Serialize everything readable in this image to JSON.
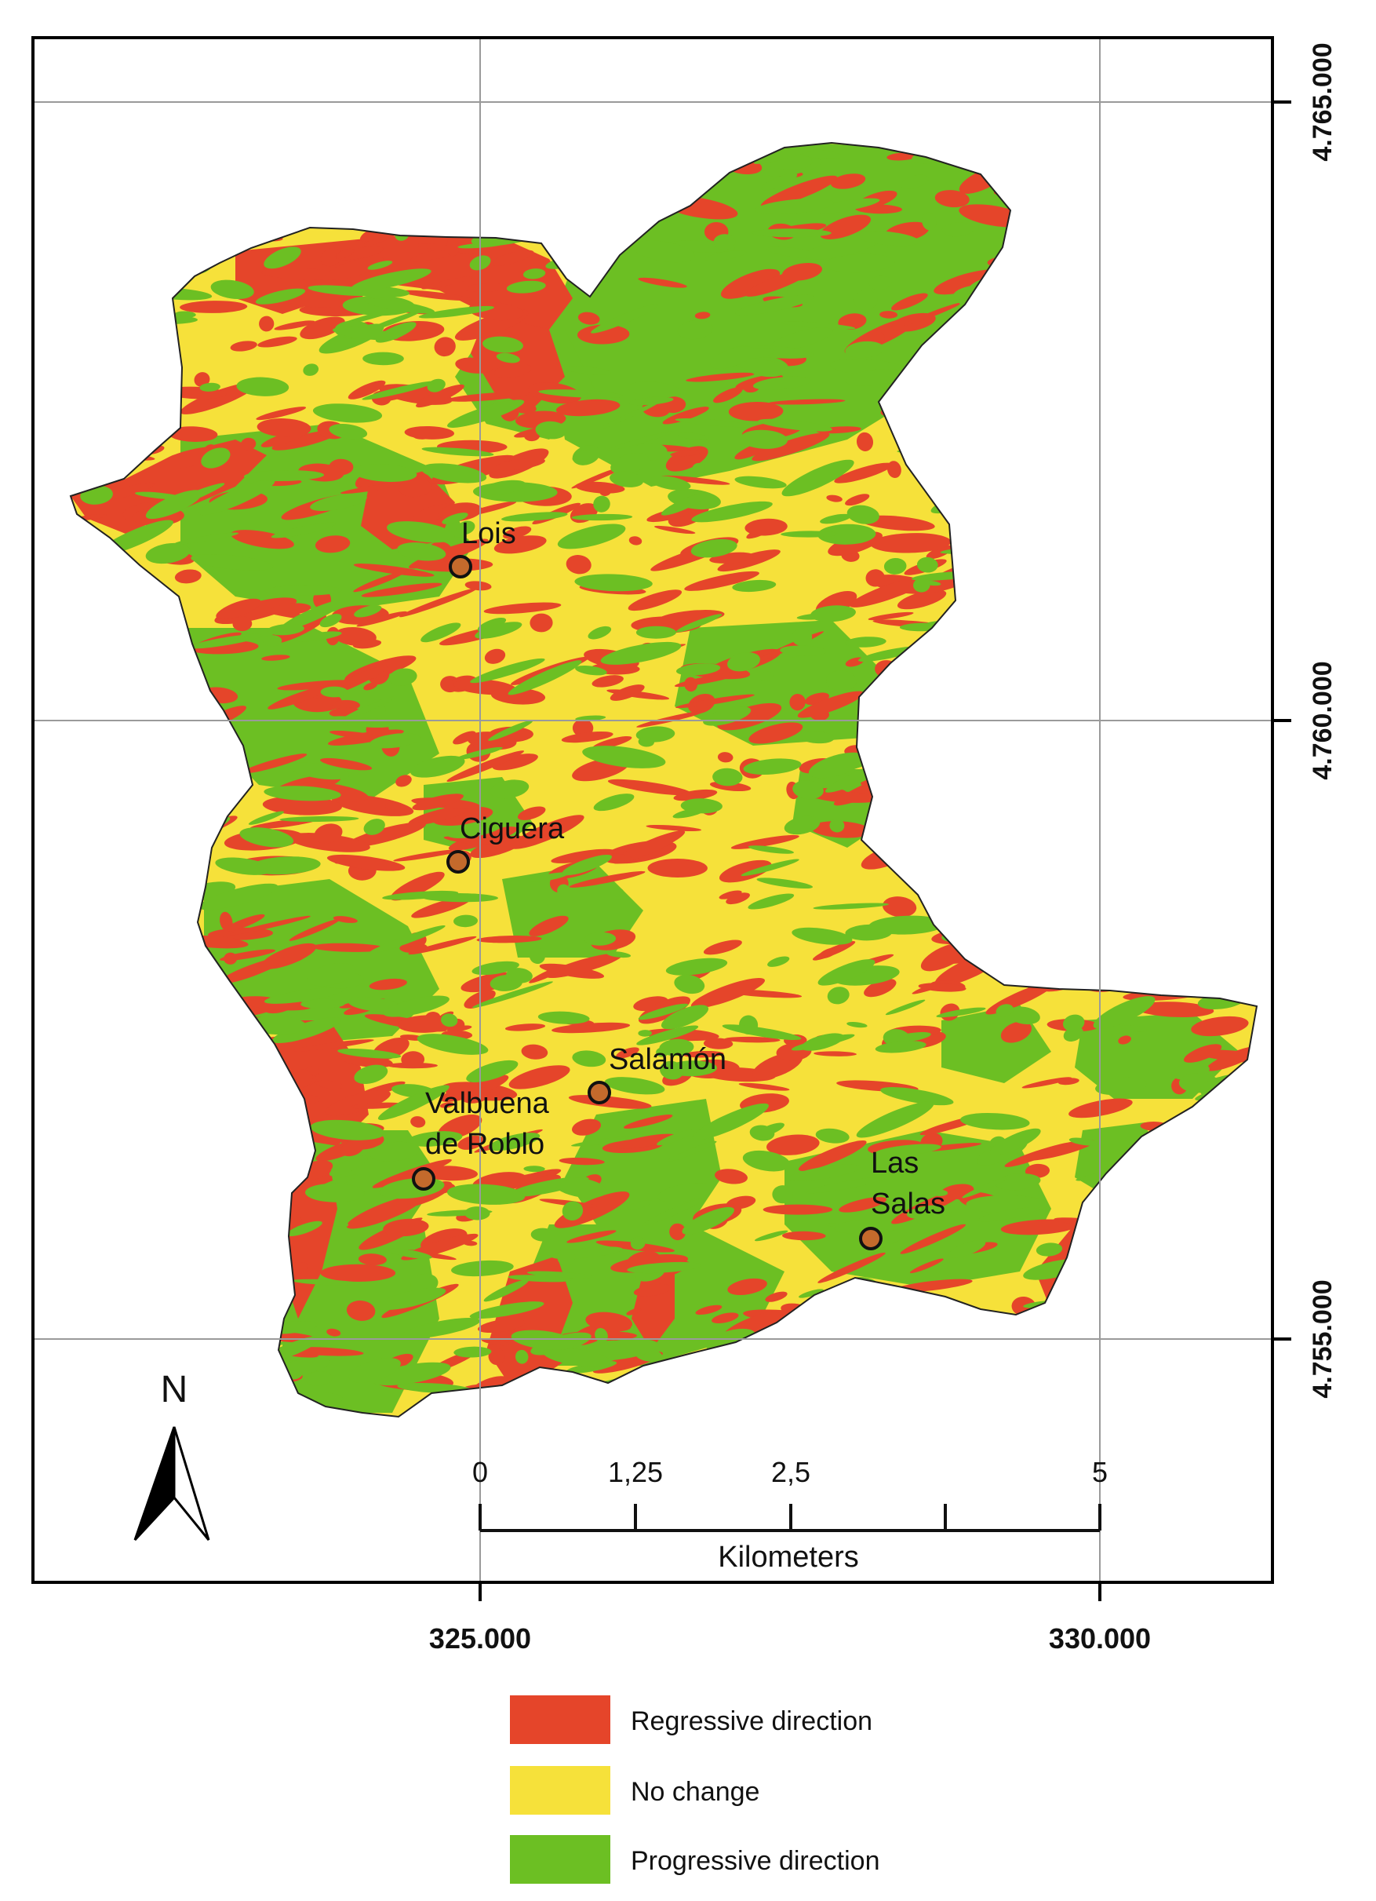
{
  "map": {
    "grid_x_labels": [
      "325.000",
      "330.000"
    ],
    "grid_y_labels": [
      "4.765.000",
      "4.760.000",
      "4.755.000"
    ],
    "north_label": "N",
    "places": [
      {
        "id": "lois",
        "lines": [
          "Lois"
        ]
      },
      {
        "id": "ciguera",
        "lines": [
          "Ciguera"
        ]
      },
      {
        "id": "salamon",
        "lines": [
          "Salamón"
        ]
      },
      {
        "id": "valbuena",
        "lines": [
          "Valbuena",
          "de Roblo"
        ]
      },
      {
        "id": "las-salas",
        "lines": [
          "Las",
          "Salas"
        ]
      }
    ],
    "scale": {
      "ticks": [
        "0",
        "1,25",
        "2,5",
        "5"
      ],
      "unit": "Kilometers"
    },
    "colors": {
      "regressive": "#e5452a",
      "no_change": "#f6e13a",
      "progressive": "#6cbf23",
      "grid": "#9a9a9a",
      "frame": "#000000"
    }
  },
  "legend": {
    "items": [
      {
        "label": "Regressive direction",
        "color": "#e5452a"
      },
      {
        "label": "No change",
        "color": "#f6e13a"
      },
      {
        "label": "Progressive direction",
        "color": "#6cbf23"
      }
    ]
  }
}
